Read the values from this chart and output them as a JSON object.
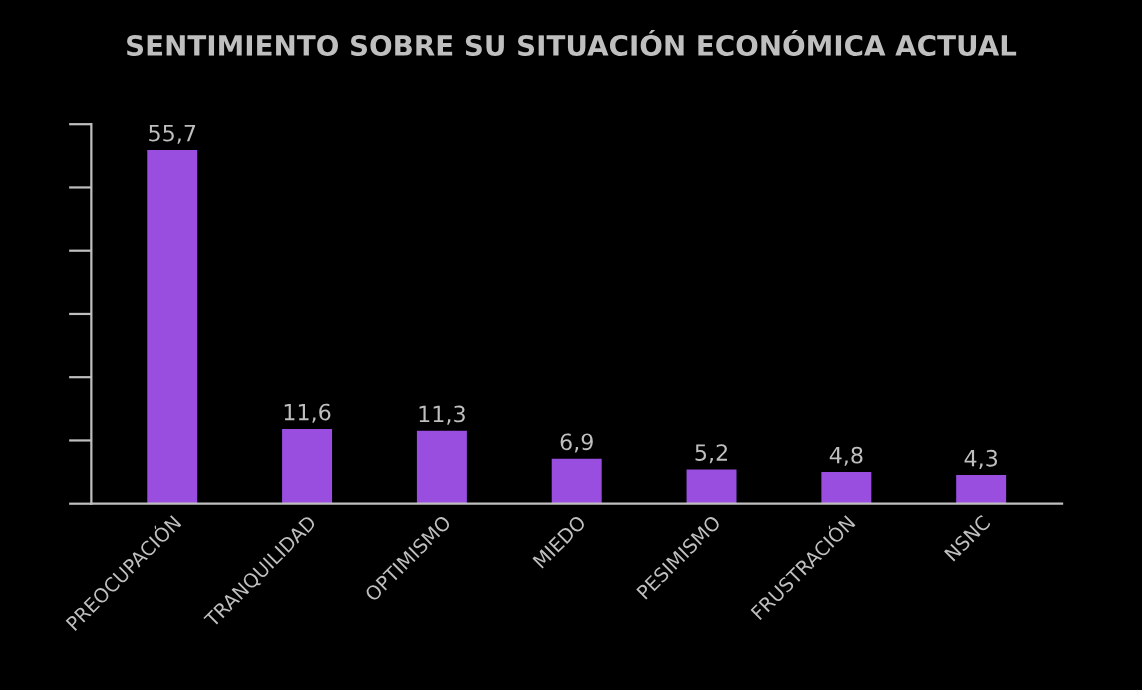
{
  "chart_data": {
    "type": "bar",
    "title": "SENTIMIENTO SOBRE SU SITUACIÓN ECONÓMICA ACTUAL",
    "categories": [
      "PREOCUPACIÓN",
      "TRANQUILIDAD",
      "OPTIMISMO",
      "MIEDO",
      "PESIMISMO",
      "FRUSTRACIÓN",
      "NSNC"
    ],
    "values": [
      55.7,
      11.6,
      11.3,
      6.9,
      5.2,
      4.8,
      4.3
    ],
    "value_labels": [
      "55,7",
      "11,6",
      "11,3",
      "6,9",
      "5,2",
      "4,8",
      "4,3"
    ],
    "color": "#9a4ee0",
    "ylim": [
      0,
      60
    ],
    "yticks": [
      {
        "value": 0,
        "label": null
      },
      {
        "value": 10,
        "label": null
      },
      {
        "value": 20,
        "label": null
      },
      {
        "value": 30,
        "label": null
      },
      {
        "value": 40,
        "label": null
      },
      {
        "value": 50,
        "label": null
      },
      {
        "value": 60,
        "label": null
      }
    ],
    "tick_labels": "x",
    "grid": false
  }
}
